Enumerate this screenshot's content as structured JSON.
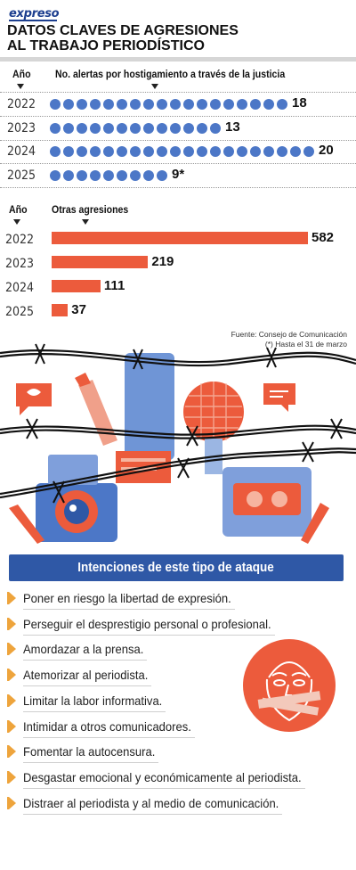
{
  "brand": "expreso",
  "title_line1": "DATOS CLAVES DE AGRESIONES",
  "title_line2": "AL TRABAJO PERIODÍSTICO",
  "colors": {
    "dot": "#4c77c7",
    "bar": "#ec5b3c",
    "banner": "#2f58a6",
    "bullet": "#eea43c"
  },
  "chart_data": [
    {
      "type": "bar",
      "x_header": "Año",
      "value_header": "No. alertas por hostigamiento a través de la justicia",
      "categories": [
        "2022",
        "2023",
        "2024",
        "2025"
      ],
      "values": [
        18,
        13,
        20,
        9
      ],
      "value_labels": [
        "18",
        "13",
        "20",
        "9*"
      ],
      "style": "dot-pictogram"
    },
    {
      "type": "bar",
      "x_header": "Año",
      "value_header": "Otras agresiones",
      "categories": [
        "2022",
        "2023",
        "2024",
        "2025"
      ],
      "values": [
        582,
        219,
        111,
        37
      ],
      "value_labels": [
        "582",
        "219",
        "111",
        "37"
      ]
    }
  ],
  "source": "Fuente: Consejo de Comunicación",
  "note": "(*) Hasta el 31 de marzo",
  "banner_title": "Intenciones de este tipo de ataque",
  "intentions": [
    "Poner en riesgo la libertad de expresión.",
    "Perseguir el desprestigio personal o profesional.",
    "Amordazar a la prensa.",
    "Atemorizar al periodista.",
    "Limitar la labor informativa.",
    "Intimidar a otros comunicadores.",
    "Fomentar la autocensura.",
    "Desgastar emocional y económicamente al periodista.",
    "Distraer al periodista y al medio de comunicación."
  ]
}
